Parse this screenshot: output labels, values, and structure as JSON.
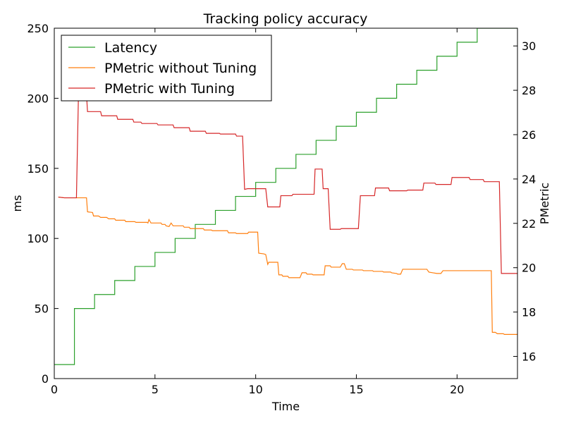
{
  "chart_data": {
    "type": "line",
    "title": "Tracking policy accuracy",
    "xlabel": "Time",
    "ylabel": "ms",
    "y2label": "PMetric",
    "xlim": [
      0,
      23
    ],
    "ylim": [
      0,
      250
    ],
    "y2lim": [
      15,
      30.8
    ],
    "x_ticks": [
      0,
      5,
      10,
      15,
      20
    ],
    "y_ticks": [
      0,
      50,
      100,
      150,
      200,
      250
    ],
    "y2_ticks": [
      16,
      18,
      20,
      22,
      24,
      26,
      28,
      30
    ],
    "grid": false,
    "legend_position": "top-left",
    "series": [
      {
        "name": "Latency",
        "axis": "left",
        "color": "#2ca02c",
        "step": true,
        "points": [
          [
            0,
            10
          ],
          [
            1,
            10
          ],
          [
            1,
            50
          ],
          [
            2,
            50
          ],
          [
            2,
            60
          ],
          [
            3,
            60
          ],
          [
            3,
            70
          ],
          [
            4,
            70
          ],
          [
            4,
            80
          ],
          [
            5,
            80
          ],
          [
            5,
            90
          ],
          [
            6,
            90
          ],
          [
            6,
            100
          ],
          [
            7,
            100
          ],
          [
            7,
            110
          ],
          [
            8,
            110
          ],
          [
            8,
            120
          ],
          [
            9,
            120
          ],
          [
            9,
            130
          ],
          [
            10,
            130
          ],
          [
            10,
            140
          ],
          [
            11,
            140
          ],
          [
            11,
            150
          ],
          [
            12,
            150
          ],
          [
            12,
            160
          ],
          [
            13,
            160
          ],
          [
            13,
            170
          ],
          [
            14,
            170
          ],
          [
            14,
            180
          ],
          [
            15,
            180
          ],
          [
            15,
            190
          ],
          [
            16,
            190
          ],
          [
            16,
            200
          ],
          [
            17,
            200
          ],
          [
            17,
            210
          ],
          [
            18,
            210
          ],
          [
            18,
            220
          ],
          [
            19,
            220
          ],
          [
            19,
            230
          ],
          [
            20,
            230
          ],
          [
            20,
            240
          ],
          [
            21,
            240
          ],
          [
            21,
            250
          ],
          [
            23,
            250
          ]
        ]
      },
      {
        "name": "PMetric without Tuning",
        "axis": "left",
        "color": "#ff7f0e",
        "step": false,
        "points": [
          [
            0.2,
            129.5
          ],
          [
            0.5,
            129
          ],
          [
            1.0,
            129
          ],
          [
            1.6,
            129
          ],
          [
            1.65,
            119
          ],
          [
            1.9,
            118.5
          ],
          [
            1.95,
            116
          ],
          [
            2.2,
            116
          ],
          [
            2.3,
            115
          ],
          [
            2.6,
            115
          ],
          [
            2.7,
            114
          ],
          [
            3.0,
            114
          ],
          [
            3.05,
            113
          ],
          [
            3.5,
            113
          ],
          [
            3.55,
            112
          ],
          [
            4.0,
            112
          ],
          [
            4.05,
            111.5
          ],
          [
            4.6,
            111.5
          ],
          [
            4.65,
            111
          ],
          [
            4.7,
            113.5
          ],
          [
            4.8,
            111
          ],
          [
            5.3,
            111
          ],
          [
            5.35,
            110
          ],
          [
            5.5,
            110
          ],
          [
            5.55,
            109
          ],
          [
            5.7,
            108.5
          ],
          [
            5.8,
            111
          ],
          [
            5.9,
            109
          ],
          [
            6.4,
            109
          ],
          [
            6.45,
            108
          ],
          [
            6.7,
            108
          ],
          [
            6.75,
            107
          ],
          [
            7.4,
            107
          ],
          [
            7.45,
            106
          ],
          [
            7.8,
            106
          ],
          [
            7.85,
            105.5
          ],
          [
            8.6,
            105.5
          ],
          [
            8.65,
            104
          ],
          [
            9.0,
            104
          ],
          [
            9.05,
            103.5
          ],
          [
            9.6,
            103.5
          ],
          [
            9.65,
            104.5
          ],
          [
            10.1,
            104.5
          ],
          [
            10.15,
            89.5
          ],
          [
            10.4,
            89
          ],
          [
            10.5,
            88.5
          ],
          [
            10.6,
            81.5
          ],
          [
            10.65,
            83
          ],
          [
            11.1,
            83
          ],
          [
            11.15,
            74
          ],
          [
            11.3,
            74
          ],
          [
            11.35,
            73
          ],
          [
            11.6,
            73
          ],
          [
            11.65,
            72
          ],
          [
            12.2,
            72
          ],
          [
            12.3,
            75.5
          ],
          [
            12.5,
            75.5
          ],
          [
            12.55,
            74.5
          ],
          [
            12.8,
            74.5
          ],
          [
            12.85,
            74
          ],
          [
            13.4,
            74
          ],
          [
            13.45,
            80.5
          ],
          [
            13.7,
            80.5
          ],
          [
            13.75,
            79.5
          ],
          [
            14.2,
            79.5
          ],
          [
            14.3,
            82
          ],
          [
            14.4,
            82
          ],
          [
            14.5,
            78
          ],
          [
            14.8,
            78
          ],
          [
            14.85,
            77.5
          ],
          [
            15.3,
            77.5
          ],
          [
            15.35,
            77
          ],
          [
            15.8,
            77
          ],
          [
            15.85,
            76.5
          ],
          [
            16.3,
            76.5
          ],
          [
            16.35,
            76
          ],
          [
            16.7,
            76
          ],
          [
            16.75,
            75.5
          ],
          [
            17.0,
            75
          ],
          [
            17.05,
            74.5
          ],
          [
            17.2,
            74.5
          ],
          [
            17.3,
            78
          ],
          [
            18.5,
            78
          ],
          [
            18.6,
            76
          ],
          [
            18.8,
            75.5
          ],
          [
            19.0,
            75
          ],
          [
            19.2,
            75
          ],
          [
            19.3,
            77
          ],
          [
            21.7,
            77
          ],
          [
            21.75,
            33
          ],
          [
            21.9,
            33
          ],
          [
            22.0,
            32
          ],
          [
            22.3,
            32
          ],
          [
            22.35,
            31.5
          ],
          [
            23,
            31.5
          ]
        ]
      },
      {
        "name": "PMetric with Tuning",
        "axis": "left",
        "color": "#d62728",
        "step": false,
        "points": [
          [
            0.2,
            129.5
          ],
          [
            0.5,
            129
          ],
          [
            1.0,
            129
          ],
          [
            1.1,
            129
          ],
          [
            1.2,
            202.5
          ],
          [
            1.6,
            202.5
          ],
          [
            1.65,
            190.5
          ],
          [
            2.3,
            190.5
          ],
          [
            2.35,
            187.5
          ],
          [
            3.1,
            187.5
          ],
          [
            3.15,
            185
          ],
          [
            3.9,
            185
          ],
          [
            3.95,
            183
          ],
          [
            4.3,
            183
          ],
          [
            4.35,
            182
          ],
          [
            5.1,
            182
          ],
          [
            5.15,
            181
          ],
          [
            5.9,
            181
          ],
          [
            5.95,
            179
          ],
          [
            6.7,
            179
          ],
          [
            6.75,
            176.5
          ],
          [
            7.5,
            176.5
          ],
          [
            7.55,
            175
          ],
          [
            8.2,
            175
          ],
          [
            8.25,
            174.5
          ],
          [
            9.0,
            174.5
          ],
          [
            9.05,
            173
          ],
          [
            9.35,
            173
          ],
          [
            9.45,
            135
          ],
          [
            9.6,
            135.5
          ],
          [
            10.5,
            135.5
          ],
          [
            10.6,
            122.5
          ],
          [
            11.2,
            122.5
          ],
          [
            11.25,
            130.5
          ],
          [
            11.8,
            130.5
          ],
          [
            11.85,
            131.5
          ],
          [
            12.9,
            131.5
          ],
          [
            12.95,
            149.5
          ],
          [
            13.3,
            149.5
          ],
          [
            13.35,
            135.5
          ],
          [
            13.6,
            135.5
          ],
          [
            13.7,
            106.5
          ],
          [
            14.2,
            106.5
          ],
          [
            14.25,
            107
          ],
          [
            15.1,
            107
          ],
          [
            15.2,
            130.5
          ],
          [
            15.9,
            130.5
          ],
          [
            15.95,
            136
          ],
          [
            16.6,
            136
          ],
          [
            16.65,
            134
          ],
          [
            17.5,
            134
          ],
          [
            17.55,
            134.5
          ],
          [
            18.3,
            134.5
          ],
          [
            18.35,
            139.5
          ],
          [
            18.9,
            139.5
          ],
          [
            18.95,
            138.5
          ],
          [
            19.7,
            138.5
          ],
          [
            19.75,
            143.5
          ],
          [
            20.6,
            143.5
          ],
          [
            20.65,
            142
          ],
          [
            21.3,
            142
          ],
          [
            21.35,
            140.5
          ],
          [
            22.1,
            140.5
          ],
          [
            22.2,
            75
          ],
          [
            23,
            75
          ]
        ]
      }
    ]
  }
}
